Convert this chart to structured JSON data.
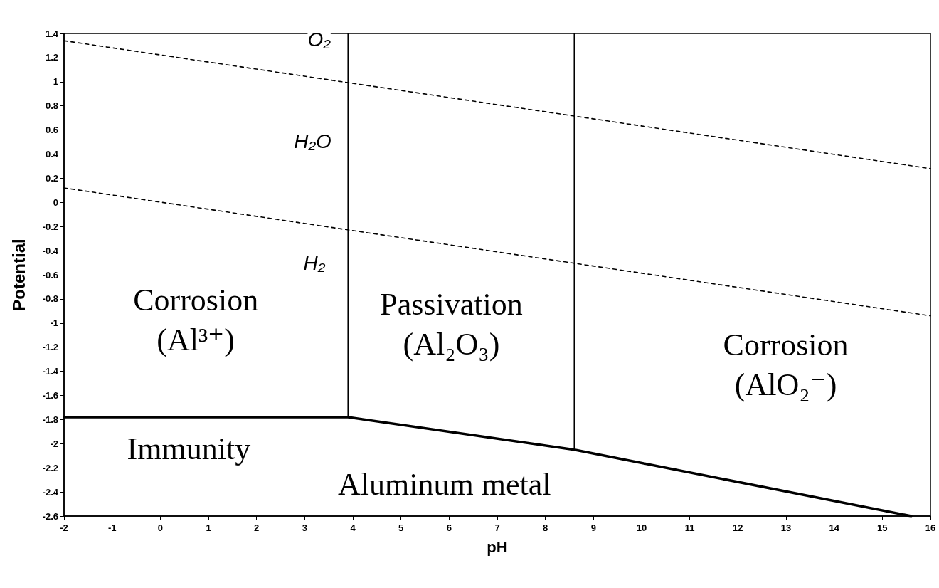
{
  "chart_data": {
    "type": "line",
    "xlabel": "pH",
    "ylabel": "Potential",
    "xlim": [
      -2,
      16
    ],
    "xticks": [
      -2,
      -1,
      0,
      1,
      2,
      3,
      4,
      5,
      6,
      7,
      8,
      9,
      10,
      11,
      12,
      13,
      14,
      15,
      16
    ],
    "ylim": [
      -2.6,
      1.4
    ],
    "yticks": [
      -2.6,
      -2.4,
      -2.2,
      -2,
      -1.8,
      -1.6,
      -1.4,
      -1.2,
      -1,
      -0.8,
      -0.6,
      -0.4,
      -0.2,
      0,
      0.2,
      0.4,
      0.6,
      0.8,
      1,
      1.2,
      1.4
    ],
    "marker": "none",
    "series": [
      {
        "color": "#000000",
        "line_style": "dashed",
        "x": [
          -2,
          16
        ],
        "values": [
          1.34,
          0.28
        ]
      },
      {
        "color": "#000000",
        "line_style": "dashed",
        "x": [
          -2,
          16
        ],
        "values": [
          0.12,
          -0.94
        ]
      },
      {
        "color": "#000000",
        "line_style": "solid",
        "x": [
          3.9,
          3.9
        ],
        "values": [
          -1.78,
          1.4
        ]
      },
      {
        "color": "#000000",
        "line_style": "solid",
        "x": [
          8.6,
          8.6
        ],
        "values": [
          -2.05,
          1.4
        ]
      },
      {
        "color": "#000000",
        "line_style": "solid",
        "x": [
          -2,
          3.9,
          8.6,
          15.6
        ],
        "values": [
          -1.78,
          -1.78,
          -2.05,
          -2.6
        ]
      }
    ],
    "annotations": [
      {
        "text": "O₂",
        "x": 3.3,
        "y": 1.35
      },
      {
        "text": "H₂",
        "x": 3.2,
        "y": -0.5
      },
      "H₂O",
      "Corrosion\n(Al³⁺)",
      "Passivation\n(Al₂O₃)",
      "Corrosion\n(AlO₂⁻)",
      "Immunity",
      "Aluminum metal"
    ]
  }
}
